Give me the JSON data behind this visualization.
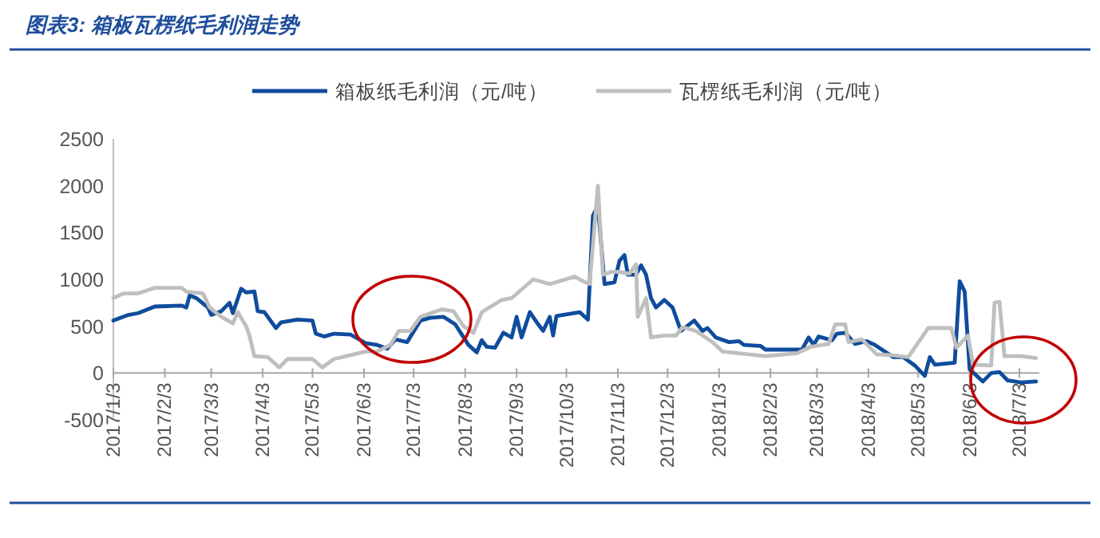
{
  "chart_data": {
    "type": "line",
    "title": "图表3:  箱板瓦楞纸毛利润走势",
    "series": [
      {
        "name": "箱板纸毛利润（元/吨）",
        "color": "#0f4c9c",
        "x": [
          "2017-01-03",
          "2017-01-12",
          "2017-01-18",
          "2017-01-28",
          "2017-02-13",
          "2017-02-16",
          "2017-02-18",
          "2017-02-22",
          "2017-03-01",
          "2017-03-03",
          "2017-03-09",
          "2017-03-14",
          "2017-03-16",
          "2017-03-21",
          "2017-03-24",
          "2017-03-29",
          "2017-03-31",
          "2017-04-04",
          "2017-04-11",
          "2017-04-14",
          "2017-04-24",
          "2017-05-03",
          "2017-05-05",
          "2017-05-10",
          "2017-05-16",
          "2017-05-26",
          "2017-06-04",
          "2017-06-11",
          "2017-06-17",
          "2017-06-22",
          "2017-06-29",
          "2017-07-07",
          "2017-07-13",
          "2017-07-21",
          "2017-07-28",
          "2017-08-05",
          "2017-08-10",
          "2017-08-13",
          "2017-08-16",
          "2017-08-21",
          "2017-08-26",
          "2017-08-31",
          "2017-09-03",
          "2017-09-06",
          "2017-09-11",
          "2017-09-16",
          "2017-09-19",
          "2017-09-23",
          "2017-09-25",
          "2017-09-27",
          "2017-10-11",
          "2017-10-16",
          "2017-10-19",
          "2017-10-22",
          "2017-10-26",
          "2017-11-01",
          "2017-11-04",
          "2017-11-07",
          "2017-11-09",
          "2017-11-14",
          "2017-11-17",
          "2017-11-20",
          "2017-11-23",
          "2017-11-26",
          "2017-12-01",
          "2017-12-06",
          "2017-12-11",
          "2017-12-19",
          "2017-12-24",
          "2017-12-27",
          "2018-01-01",
          "2018-01-09",
          "2018-01-15",
          "2018-01-18",
          "2018-01-28",
          "2018-01-31",
          "2018-02-22",
          "2018-02-26",
          "2018-03-01",
          "2018-03-04",
          "2018-03-12",
          "2018-03-15",
          "2018-03-20",
          "2018-03-26",
          "2018-04-02",
          "2018-04-07",
          "2018-04-18",
          "2018-04-24",
          "2018-05-01",
          "2018-05-07",
          "2018-05-10",
          "2018-05-13",
          "2018-05-25",
          "2018-05-28",
          "2018-05-31",
          "2018-06-03",
          "2018-06-11",
          "2018-06-16",
          "2018-06-21",
          "2018-06-26",
          "2018-06-30",
          "2018-07-04",
          "2018-07-13"
        ],
        "values": [
          560,
          620,
          640,
          710,
          720,
          700,
          830,
          800,
          700,
          620,
          660,
          750,
          640,
          900,
          860,
          870,
          660,
          650,
          480,
          540,
          570,
          560,
          420,
          390,
          420,
          410,
          320,
          300,
          260,
          360,
          330,
          560,
          590,
          600,
          520,
          300,
          220,
          350,
          280,
          270,
          430,
          380,
          600,
          380,
          650,
          520,
          450,
          600,
          400,
          610,
          650,
          570,
          1680,
          1790,
          950,
          970,
          1200,
          1260,
          1050,
          1050,
          1150,
          1050,
          800,
          700,
          780,
          700,
          450,
          560,
          450,
          480,
          380,
          330,
          340,
          300,
          290,
          250,
          250,
          380,
          300,
          390,
          350,
          420,
          430,
          310,
          340,
          300,
          170,
          170,
          80,
          -30,
          170,
          90,
          110,
          980,
          870,
          40,
          -90,
          0,
          10,
          -80,
          -90,
          -100,
          -90
        ]
      },
      {
        "name": "瓦楞纸毛利润（元/吨）",
        "color": "#bfbfbf",
        "x": [
          "2017-01-03",
          "2017-01-09",
          "2017-01-18",
          "2017-01-28",
          "2017-02-13",
          "2017-02-16",
          "2017-02-26",
          "2017-03-02",
          "2017-03-09",
          "2017-03-16",
          "2017-03-19",
          "2017-03-24",
          "2017-03-26",
          "2017-03-29",
          "2017-04-06",
          "2017-04-13",
          "2017-04-18",
          "2017-05-03",
          "2017-05-09",
          "2017-05-16",
          "2017-06-04",
          "2017-06-11",
          "2017-06-19",
          "2017-06-24",
          "2017-07-01",
          "2017-07-07",
          "2017-07-20",
          "2017-07-27",
          "2017-08-02",
          "2017-08-08",
          "2017-08-13",
          "2017-08-25",
          "2017-08-31",
          "2017-09-13",
          "2017-09-23",
          "2017-10-08",
          "2017-10-13",
          "2017-10-17",
          "2017-10-22",
          "2017-10-25",
          "2017-10-30",
          "2017-11-04",
          "2017-11-10",
          "2017-11-14",
          "2017-11-15",
          "2017-11-20",
          "2017-11-23",
          "2017-12-01",
          "2017-12-08",
          "2017-12-12",
          "2017-12-20",
          "2017-12-30",
          "2018-01-05",
          "2018-01-31",
          "2018-02-19",
          "2018-02-27",
          "2018-03-10",
          "2018-03-14",
          "2018-03-20",
          "2018-03-22",
          "2018-03-30",
          "2018-04-08",
          "2018-04-18",
          "2018-04-27",
          "2018-05-09",
          "2018-05-23",
          "2018-05-26",
          "2018-06-02",
          "2018-06-05",
          "2018-06-16",
          "2018-06-18",
          "2018-06-21",
          "2018-06-24",
          "2018-07-04",
          "2018-07-13"
        ],
        "values": [
          800,
          850,
          850,
          910,
          910,
          870,
          850,
          700,
          600,
          530,
          650,
          500,
          400,
          180,
          170,
          60,
          150,
          150,
          60,
          150,
          230,
          230,
          300,
          450,
          450,
          600,
          680,
          660,
          500,
          430,
          650,
          780,
          800,
          1000,
          950,
          1030,
          980,
          950,
          2000,
          1050,
          1080,
          1080,
          1060,
          1160,
          600,
          800,
          380,
          400,
          400,
          490,
          450,
          330,
          230,
          180,
          210,
          280,
          310,
          520,
          520,
          330,
          360,
          200,
          190,
          170,
          480,
          480,
          270,
          400,
          90,
          80,
          750,
          760,
          180,
          180,
          160
        ]
      }
    ],
    "xlim": [
      "2017-01-03",
      "2018-07-15"
    ],
    "xticks": [
      {
        "value": "2017-01-03",
        "label": "2017/1/3"
      },
      {
        "value": "2017-02-03",
        "label": "2017/2/3"
      },
      {
        "value": "2017-03-03",
        "label": "2017/3/3"
      },
      {
        "value": "2017-04-03",
        "label": "2017/4/3"
      },
      {
        "value": "2017-05-03",
        "label": "2017/5/3"
      },
      {
        "value": "2017-06-03",
        "label": "2017/6/3"
      },
      {
        "value": "2017-07-03",
        "label": "2017/7/3"
      },
      {
        "value": "2017-08-03",
        "label": "2017/8/3"
      },
      {
        "value": "2017-09-03",
        "label": "2017/9/3"
      },
      {
        "value": "2017-10-03",
        "label": "2017/10/3"
      },
      {
        "value": "2017-11-03",
        "label": "2017/11/3"
      },
      {
        "value": "2017-12-03",
        "label": "2017/12/3"
      },
      {
        "value": "2018-01-03",
        "label": "2018/1/3"
      },
      {
        "value": "2018-02-03",
        "label": "2018/2/3"
      },
      {
        "value": "2018-03-03",
        "label": "2018/3/3"
      },
      {
        "value": "2018-04-03",
        "label": "2018/4/3"
      },
      {
        "value": "2018-05-03",
        "label": "2018/5/3"
      },
      {
        "value": "2018-06-03",
        "label": "2018/6/3"
      },
      {
        "value": "2018-07-03",
        "label": "2018/7/3"
      }
    ],
    "ylim": [
      -500,
      2500
    ],
    "yticks": [
      -500,
      0,
      500,
      1000,
      1500,
      2000,
      2500
    ],
    "legend": "top",
    "grid": false,
    "marker": "none",
    "line_style": "solid"
  }
}
